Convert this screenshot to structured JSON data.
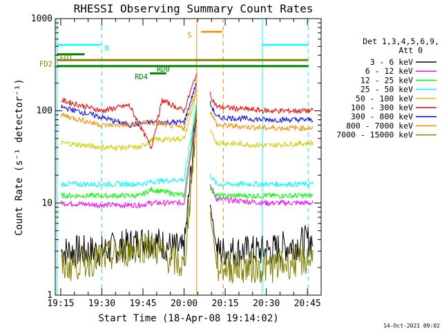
{
  "chart_data": {
    "type": "line",
    "title": "RHESSI Observing Summary Count Rates",
    "xlabel": "Start Time (18-Apr-08 19:14:02)",
    "ylabel": "Count Rate (s⁻¹ detector⁻¹)",
    "y_scale": "log",
    "ylim": [
      1,
      1000
    ],
    "xlim_minutes_after_19_00": [
      13,
      58
    ],
    "x_tick_labels": [
      "19:15",
      "19:30",
      "19:45",
      "20:00",
      "20:15",
      "20:30",
      "20:45"
    ],
    "y_tick_labels": [
      "1",
      "10",
      "100",
      "1000"
    ],
    "legend_header": [
      "Det 1,3,4,5,6,9,",
      "Att 0"
    ],
    "legend_position": "right",
    "series": [
      {
        "name": "3 - 6 keV",
        "color": "#000000",
        "points": [
          [
            15.2,
            3
          ],
          [
            30,
            3
          ],
          [
            47,
            4
          ],
          [
            60,
            3
          ],
          [
            64.5,
            100
          ],
          [
            69.5,
            10
          ],
          [
            72,
            3
          ],
          [
            90,
            3
          ],
          [
            107,
            4
          ]
        ]
      },
      {
        "name": "6 - 12 keV",
        "color": "#ff00ff",
        "points": [
          [
            15.2,
            10
          ],
          [
            30,
            9.5
          ],
          [
            44,
            9.5
          ],
          [
            48,
            10
          ],
          [
            60,
            10
          ],
          [
            64.5,
            100
          ],
          [
            69.5,
            15
          ],
          [
            72,
            11
          ],
          [
            90,
            10
          ],
          [
            107,
            10
          ]
        ]
      },
      {
        "name": "12 - 25 keV",
        "color": "#00ff00",
        "points": [
          [
            15.2,
            12
          ],
          [
            30,
            12
          ],
          [
            44,
            12
          ],
          [
            48,
            14
          ],
          [
            60,
            12
          ],
          [
            64.5,
            110
          ],
          [
            69.5,
            15
          ],
          [
            72,
            12
          ],
          [
            90,
            12
          ],
          [
            107,
            12
          ]
        ]
      },
      {
        "name": "25 - 50 keV",
        "color": "#00ffff",
        "points": [
          [
            15.2,
            16
          ],
          [
            30,
            16
          ],
          [
            44,
            16
          ],
          [
            48,
            17
          ],
          [
            60,
            18
          ],
          [
            64.5,
            120
          ],
          [
            69.5,
            20
          ],
          [
            72,
            16
          ],
          [
            90,
            16
          ],
          [
            107,
            16
          ]
        ]
      },
      {
        "name": "50 - 100 keV",
        "color": "#cccc00",
        "points": [
          [
            15.2,
            45
          ],
          [
            30,
            40
          ],
          [
            44,
            40
          ],
          [
            48,
            48
          ],
          [
            60,
            50
          ],
          [
            64.5,
            150
          ],
          [
            69.5,
            60
          ],
          [
            72,
            45
          ],
          [
            90,
            42
          ],
          [
            107,
            45
          ]
        ]
      },
      {
        "name": "100 - 300 keV",
        "color": "#ff0000",
        "points": [
          [
            15.2,
            130
          ],
          [
            30,
            100
          ],
          [
            40,
            115
          ],
          [
            48,
            40
          ],
          [
            52,
            130
          ],
          [
            60,
            100
          ],
          [
            64.5,
            250
          ],
          [
            69.5,
            150
          ],
          [
            72,
            110
          ],
          [
            90,
            100
          ],
          [
            107,
            100
          ]
        ]
      },
      {
        "name": "300 - 800 keV",
        "color": "#0000ff",
        "points": [
          [
            15.2,
            110
          ],
          [
            30,
            85
          ],
          [
            40,
            70
          ],
          [
            48,
            75
          ],
          [
            60,
            75
          ],
          [
            64.5,
            200
          ],
          [
            69.5,
            120
          ],
          [
            72,
            85
          ],
          [
            90,
            80
          ],
          [
            107,
            80
          ]
        ]
      },
      {
        "name": "800 - 7000 keV",
        "color": "#ff8800",
        "points": [
          [
            15.2,
            90
          ],
          [
            30,
            70
          ],
          [
            40,
            70
          ],
          [
            48,
            75
          ],
          [
            60,
            65
          ],
          [
            64.5,
            170
          ],
          [
            69.5,
            100
          ],
          [
            72,
            70
          ],
          [
            90,
            65
          ],
          [
            107,
            65
          ]
        ]
      },
      {
        "name": "7000 - 15000 keV",
        "color": "#808000",
        "points": [
          [
            15.2,
            2
          ],
          [
            30,
            2.5
          ],
          [
            47,
            3.5
          ],
          [
            60,
            2
          ],
          [
            64.5,
            80
          ],
          [
            69.5,
            8
          ],
          [
            72,
            2
          ],
          [
            90,
            2
          ],
          [
            107,
            2.5
          ]
        ]
      }
    ],
    "annotations": {
      "S": {
        "label": "S"
      },
      "N": {
        "label": "N"
      },
      "FD1": {
        "label": "FD1"
      },
      "FD2": {
        "label": "FD2"
      },
      "RD0": {
        "label": "RD0"
      },
      "RD4": {
        "label": "RD4"
      }
    }
  },
  "footer": {
    "timestamp": "14-Oct-2021 09:02"
  }
}
